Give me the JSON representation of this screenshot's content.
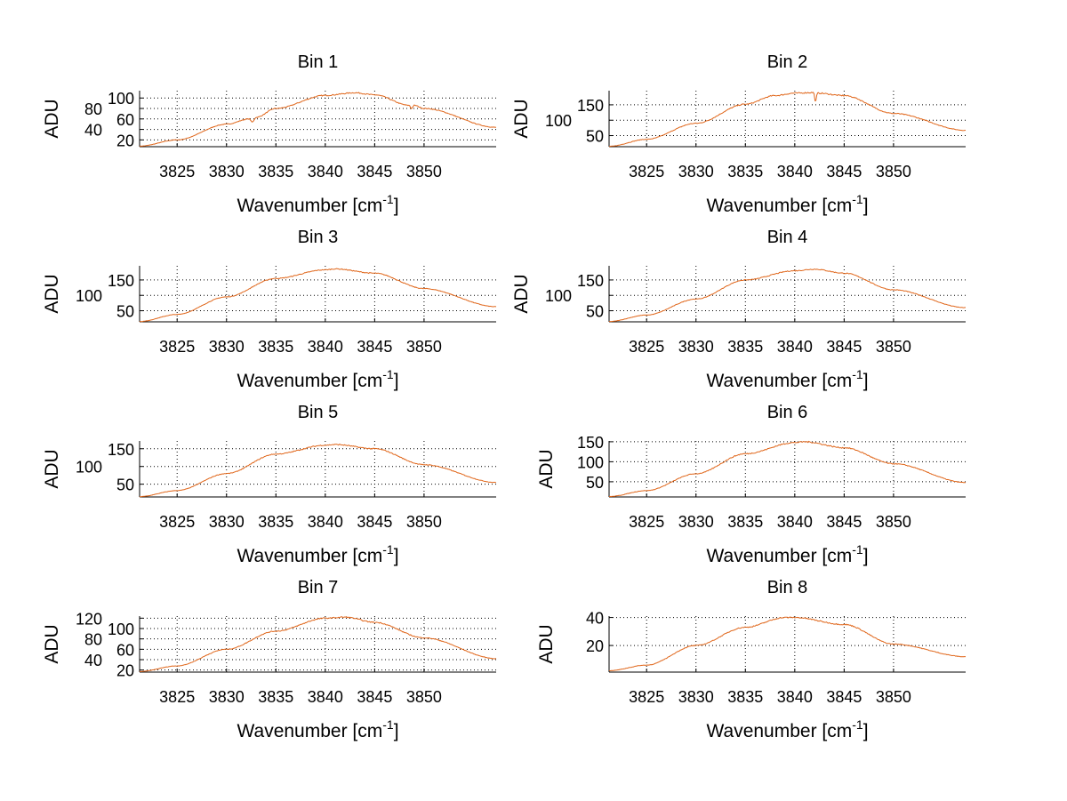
{
  "chart_data": [
    {
      "type": "line",
      "title": "Bin 1",
      "xlabel": "Wavenumber [cm",
      "xlabel_sup": "-1",
      "xlabel_end": "]",
      "ylabel": "ADU",
      "xlim": [
        3821.2,
        3857.3
      ],
      "ylim": [
        7,
        114
      ],
      "xticks": [
        3825,
        3830,
        3835,
        3840,
        3845,
        3850
      ],
      "yticks": [
        20,
        40,
        60,
        80,
        100
      ],
      "grid": true,
      "color": "#E0661A",
      "x": [
        3821.2,
        3825,
        3830,
        3832.3,
        3832.6,
        3833,
        3835,
        3840,
        3843,
        3845,
        3848.5,
        3848.7,
        3849,
        3850,
        3857.3
      ],
      "y": [
        8,
        20,
        50,
        60,
        54,
        63,
        80,
        105,
        110,
        106,
        86,
        80,
        86,
        80,
        44
      ],
      "noise": 2
    },
    {
      "type": "line",
      "title": "Bin 2",
      "xlabel": "Wavenumber [cm",
      "xlabel_sup": "-1",
      "xlabel_end": "]",
      "ylabel": "ADU",
      "xlim": [
        3821.2,
        3857.3
      ],
      "ylim": [
        14,
        196
      ],
      "xticks": [
        3825,
        3830,
        3835,
        3840,
        3845,
        3850
      ],
      "yticks": [
        50,
        100,
        150
      ],
      "grid": true,
      "color": "#E0661A",
      "x": [
        3821.2,
        3825,
        3830,
        3835,
        3838,
        3840,
        3841.9,
        3842.1,
        3842.3,
        3845,
        3850,
        3857.3
      ],
      "y": [
        15,
        38,
        90,
        152,
        180,
        188,
        190,
        160,
        188,
        180,
        122,
        67
      ],
      "noise": 4
    },
    {
      "type": "line",
      "title": "Bin 3",
      "xlabel": "Wavenumber [cm",
      "xlabel_sup": "-1",
      "xlabel_end": "]",
      "ylabel": "ADU",
      "xlim": [
        3821.2,
        3857.3
      ],
      "ylim": [
        14,
        196
      ],
      "xticks": [
        3825,
        3830,
        3835,
        3840,
        3845,
        3850
      ],
      "yticks": [
        50,
        100,
        150
      ],
      "grid": true,
      "color": "#E0661A",
      "x": [
        3821.2,
        3825,
        3830,
        3835,
        3840,
        3841,
        3845,
        3850,
        3857.3
      ],
      "y": [
        15,
        38,
        95,
        155,
        183,
        186,
        172,
        122,
        63
      ],
      "noise": 3
    },
    {
      "type": "line",
      "title": "Bin 4",
      "xlabel": "Wavenumber [cm",
      "xlabel_sup": "-1",
      "xlabel_end": "]",
      "ylabel": "ADU",
      "xlim": [
        3821.2,
        3857.3
      ],
      "ylim": [
        14,
        196
      ],
      "xticks": [
        3825,
        3830,
        3835,
        3840,
        3845,
        3850
      ],
      "yticks": [
        50,
        100,
        150
      ],
      "grid": true,
      "color": "#E0661A",
      "x": [
        3821.2,
        3825,
        3830,
        3835,
        3840,
        3842,
        3845,
        3850,
        3857.3
      ],
      "y": [
        15,
        36,
        88,
        150,
        180,
        185,
        172,
        118,
        60
      ],
      "noise": 3
    },
    {
      "type": "line",
      "title": "Bin 5",
      "xlabel": "Wavenumber [cm",
      "xlabel_sup": "-1",
      "xlabel_end": "]",
      "ylabel": "ADU",
      "xlim": [
        3821.2,
        3857.3
      ],
      "ylim": [
        14,
        172
      ],
      "xticks": [
        3825,
        3830,
        3835,
        3840,
        3845,
        3850
      ],
      "yticks": [
        50,
        100,
        150
      ],
      "grid": true,
      "color": "#E0661A",
      "x": [
        3821.2,
        3825,
        3830,
        3835,
        3840,
        3841,
        3845,
        3850,
        3857.3
      ],
      "y": [
        15,
        32,
        80,
        135,
        160,
        162,
        150,
        105,
        55
      ],
      "noise": 3
    },
    {
      "type": "line",
      "title": "Bin 6",
      "xlabel": "Wavenumber [cm",
      "xlabel_sup": "-1",
      "xlabel_end": "]",
      "ylabel": "ADU",
      "xlim": [
        3821.2,
        3857.3
      ],
      "ylim": [
        12,
        152
      ],
      "xticks": [
        3825,
        3830,
        3835,
        3840,
        3845,
        3850
      ],
      "yticks": [
        50,
        100,
        150
      ],
      "grid": true,
      "color": "#E0661A",
      "x": [
        3821.2,
        3825,
        3830,
        3835,
        3840,
        3841,
        3845,
        3850,
        3857.3
      ],
      "y": [
        13,
        28,
        70,
        120,
        148,
        150,
        135,
        95,
        48
      ],
      "noise": 3
    },
    {
      "type": "line",
      "title": "Bin 7",
      "xlabel": "Wavenumber [cm",
      "xlabel_sup": "-1",
      "xlabel_end": "]",
      "ylabel": "ADU",
      "xlim": [
        3821.2,
        3857.3
      ],
      "ylim": [
        16,
        124
      ],
      "xticks": [
        3825,
        3830,
        3835,
        3840,
        3845,
        3850
      ],
      "yticks": [
        20,
        40,
        60,
        80,
        100,
        120
      ],
      "grid": true,
      "color": "#E0661A",
      "x": [
        3821.2,
        3825,
        3830,
        3835,
        3840,
        3842,
        3845,
        3850,
        3857.3
      ],
      "y": [
        17,
        28,
        60,
        95,
        120,
        122,
        112,
        82,
        42
      ],
      "noise": 2
    },
    {
      "type": "line",
      "title": "Bin 8",
      "xlabel": "Wavenumber [cm",
      "xlabel_sup": "-1",
      "xlabel_end": "]",
      "ylabel": "ADU",
      "xlim": [
        3821.2,
        3857.3
      ],
      "ylim": [
        1,
        41
      ],
      "xticks": [
        3825,
        3830,
        3835,
        3840,
        3845,
        3850
      ],
      "yticks": [
        20,
        40
      ],
      "grid": true,
      "color": "#E0661A",
      "x": [
        3821.2,
        3825,
        3830,
        3835,
        3839,
        3840,
        3845,
        3850,
        3857.3
      ],
      "y": [
        2,
        6,
        20,
        33,
        40,
        40,
        35,
        21,
        12
      ],
      "noise": 0.8
    }
  ]
}
